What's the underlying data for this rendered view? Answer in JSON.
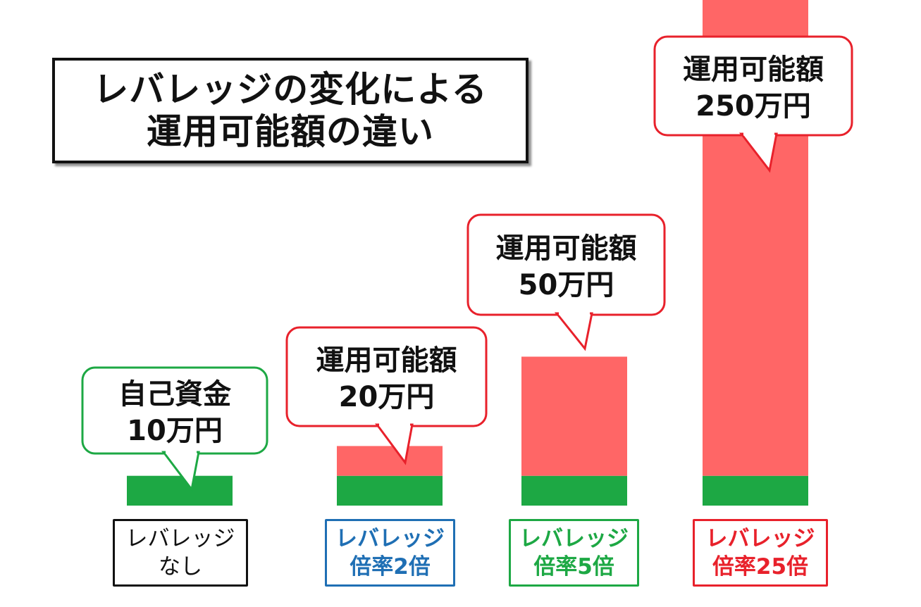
{
  "title": {
    "line1": "レバレッジの変化による",
    "line2": "運用可能額の違い"
  },
  "colors": {
    "own_capital": "#1da844",
    "leveraged": "#ff6666",
    "label_none": "#111111",
    "label_2x": "#1f6fb4",
    "label_5x": "#1da844",
    "label_25x": "#e8212b"
  },
  "chart_data": {
    "type": "bar",
    "stacked": true,
    "categories": [
      "レバレッジ\nなし",
      "レバレッジ\n倍率2倍",
      "レバレッジ\n倍率5倍",
      "レバレッジ\n倍率25倍"
    ],
    "series": [
      {
        "name": "自己資金",
        "values": [
          10,
          10,
          10,
          10
        ]
      },
      {
        "name": "運用可能額",
        "values": [
          0,
          10,
          40,
          240
        ]
      }
    ],
    "callouts": [
      {
        "line1": "自己資金",
        "line2": "10万円"
      },
      {
        "line1": "運用可能額",
        "line2": "20万円"
      },
      {
        "line1": "運用可能額",
        "line2": "50万円"
      },
      {
        "line1": "運用可能額",
        "line2": "250万円"
      }
    ],
    "unit": "万円"
  },
  "x_labels": [
    {
      "line1": "レバレッジ",
      "line2": "なし"
    },
    {
      "line1": "レバレッジ",
      "line2": "倍率2倍"
    },
    {
      "line1": "レバレッジ",
      "line2": "倍率5倍"
    },
    {
      "line1": "レバレッジ",
      "line2": "倍率25倍"
    }
  ]
}
